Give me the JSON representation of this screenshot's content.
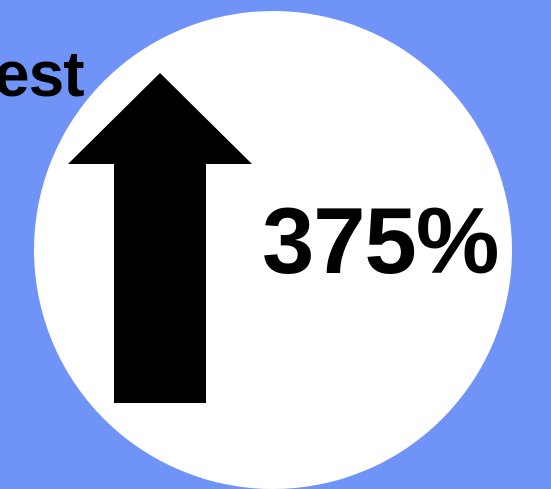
{
  "background_color": "#6f93f7",
  "circle_color": "#ffffff",
  "text_color": "#000000",
  "partial_text": "est",
  "arrow_icon": "up-arrow-icon",
  "percent_text": "375%"
}
